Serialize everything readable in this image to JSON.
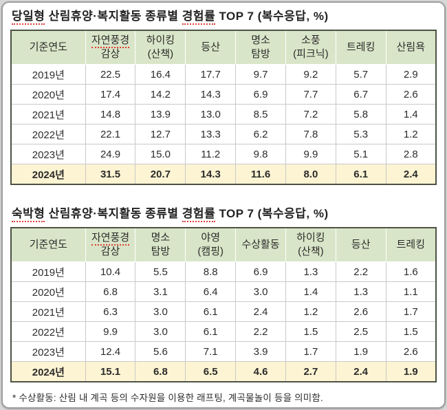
{
  "page": {
    "background": "#d7d7d7",
    "panel_background": "#ffffff",
    "panel_border": "#9e9e9e"
  },
  "colors": {
    "header_bg": "#d9e5c8",
    "highlight_bg": "#fdf4d3",
    "table_border": "#4b5244",
    "grid_line": "#c9c9c9",
    "spellcheck_underline": "#e0392f",
    "text": "#2b2b2b"
  },
  "tables": [
    {
      "title_segments": [
        {
          "text": "당일형",
          "underline": true
        },
        {
          "text": " 산림휴양·복지활동 종류별 ",
          "underline": false
        },
        {
          "text": "경험률",
          "underline": true
        },
        {
          "text": " TOP 7 (복수응답, %)",
          "underline": false
        }
      ],
      "columns": [
        {
          "text": "기준연도",
          "underline": false
        },
        {
          "text": "자연풍경\n감상",
          "underline": true
        },
        {
          "text": "하이킹\n(산책)",
          "underline": false
        },
        {
          "text": "등산",
          "underline": false
        },
        {
          "text": "명소\n탐방",
          "underline": false
        },
        {
          "text": "소풍\n(피크닉)",
          "underline": false
        },
        {
          "text": "트레킹",
          "underline": false
        },
        {
          "text": "산림욕",
          "underline": false
        }
      ],
      "rows": [
        {
          "year": "2019년",
          "values": [
            "22.5",
            "16.4",
            "17.7",
            "9.7",
            "9.2",
            "5.7",
            "2.9"
          ],
          "highlight": false
        },
        {
          "year": "2020년",
          "values": [
            "17.4",
            "14.2",
            "14.3",
            "6.9",
            "7.7",
            "6.7",
            "2.6"
          ],
          "highlight": false
        },
        {
          "year": "2021년",
          "values": [
            "14.8",
            "13.9",
            "13.0",
            "8.5",
            "7.2",
            "5.8",
            "1.4"
          ],
          "highlight": false
        },
        {
          "year": "2022년",
          "values": [
            "22.1",
            "12.7",
            "13.3",
            "6.2",
            "7.8",
            "5.3",
            "1.2"
          ],
          "highlight": false
        },
        {
          "year": "2023년",
          "values": [
            "24.9",
            "15.0",
            "11.2",
            "9.8",
            "9.9",
            "5.1",
            "2.8"
          ],
          "highlight": false
        },
        {
          "year": "2024년",
          "values": [
            "31.5",
            "20.7",
            "14.3",
            "11.6",
            "8.0",
            "6.1",
            "2.4"
          ],
          "highlight": true
        }
      ]
    },
    {
      "title_segments": [
        {
          "text": "숙박형",
          "underline": true
        },
        {
          "text": " 산림휴양·복지활동 종류별 ",
          "underline": false
        },
        {
          "text": "경험률",
          "underline": true
        },
        {
          "text": " TOP 7 (복수응답, %)",
          "underline": false
        }
      ],
      "columns": [
        {
          "text": "기준연도",
          "underline": false
        },
        {
          "text": "자연풍경\n감상",
          "underline": true
        },
        {
          "text": "명소\n탐방",
          "underline": false
        },
        {
          "text": "야영\n(캠핑)",
          "underline": false
        },
        {
          "text": "수상활동",
          "underline": false
        },
        {
          "text": "하이킹\n(산책)",
          "underline": false
        },
        {
          "text": "등산",
          "underline": false
        },
        {
          "text": "트레킹",
          "underline": false
        }
      ],
      "rows": [
        {
          "year": "2019년",
          "values": [
            "10.4",
            "5.5",
            "8.8",
            "6.9",
            "1.3",
            "2.2",
            "1.6"
          ],
          "highlight": false
        },
        {
          "year": "2020년",
          "values": [
            "6.8",
            "3.1",
            "6.4",
            "3.0",
            "1.4",
            "1.3",
            "1.1"
          ],
          "highlight": false
        },
        {
          "year": "2021년",
          "values": [
            "6.3",
            "3.0",
            "6.1",
            "2.4",
            "1.2",
            "2.6",
            "1.7"
          ],
          "highlight": false
        },
        {
          "year": "2022년",
          "values": [
            "9.9",
            "3.0",
            "6.1",
            "2.2",
            "1.5",
            "2.5",
            "1.5"
          ],
          "highlight": false
        },
        {
          "year": "2023년",
          "values": [
            "12.4",
            "5.6",
            "7.1",
            "3.9",
            "1.7",
            "1.9",
            "2.6"
          ],
          "highlight": false
        },
        {
          "year": "2024년",
          "values": [
            "15.1",
            "6.8",
            "6.5",
            "4.6",
            "2.7",
            "2.4",
            "1.9"
          ],
          "highlight": true
        }
      ]
    }
  ],
  "footnote": "* 수상활동: 산림 내 계곡 등의 수자원을 이용한 래프팅, 계곡물놀이 등을 의미함."
}
